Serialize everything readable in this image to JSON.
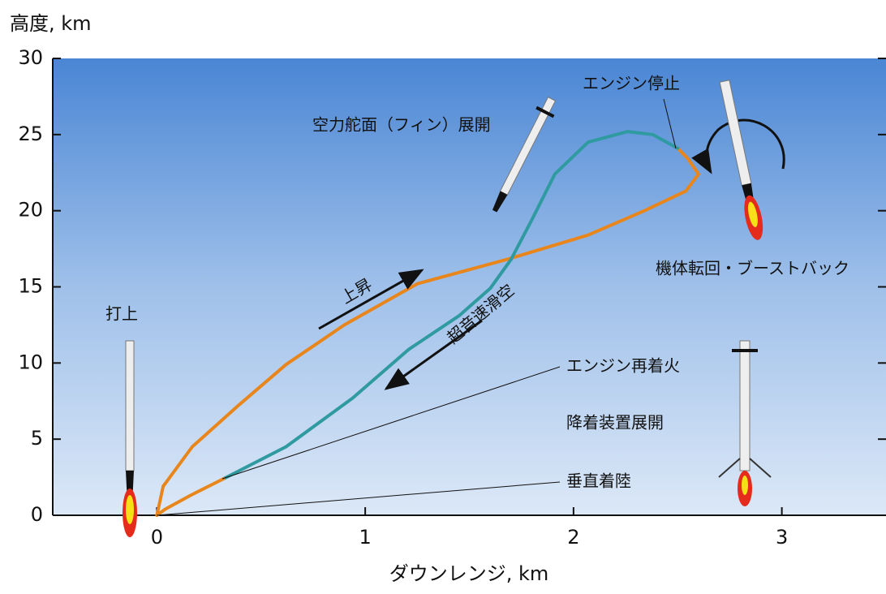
{
  "chart_data": {
    "type": "line",
    "y_label": "高度, km",
    "x_label": "ダウンレンジ, km",
    "xlim": [
      -0.5,
      3.5
    ],
    "ylim": [
      0,
      30
    ],
    "xticks": [
      0,
      1,
      2,
      3
    ],
    "yticks": [
      0,
      5,
      10,
      15,
      20,
      25,
      30
    ],
    "series": [
      {
        "color": "#e8861c",
        "x": [
          0,
          0.03,
          0.17,
          0.39,
          0.62,
          0.9,
          1.25,
          1.68,
          2.07,
          2.34,
          2.54,
          2.6,
          2.55,
          2.5
        ],
        "y": [
          0,
          1.9,
          4.5,
          7.2,
          9.9,
          12.5,
          15.2,
          16.8,
          18.4,
          20,
          21.3,
          22.4,
          23.4,
          24.1
        ]
      },
      {
        "color": "#2f9aa0",
        "x": [
          2.5,
          2.38,
          2.26,
          2.07,
          1.91,
          1.8,
          1.7,
          1.6,
          1.45,
          1.21,
          0.94,
          0.62,
          0.32
        ],
        "y": [
          24.1,
          25.0,
          25.2,
          24.5,
          22.4,
          19.4,
          16.8,
          14.9,
          13.1,
          10.9,
          7.7,
          4.5,
          2.4
        ]
      },
      {
        "color": "#e8861c",
        "x": [
          0.32,
          0.16,
          0.04,
          0
        ],
        "y": [
          2.4,
          1.3,
          0.4,
          0
        ]
      }
    ],
    "annotations": [
      "打上",
      "上昇",
      "超音速滑空",
      "空力舵面（フィン）展開",
      "エンジン停止",
      "機体転回・ブーストバック",
      "エンジン再着火",
      "降着装置展開",
      "垂直着陸"
    ]
  }
}
